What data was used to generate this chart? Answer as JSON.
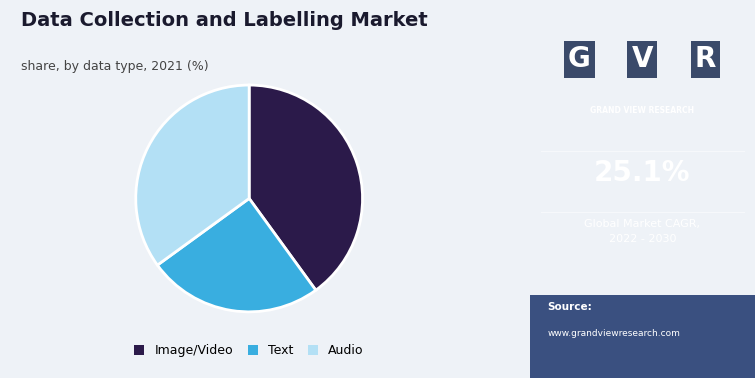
{
  "title": "Data Collection and Labelling Market",
  "subtitle": "share, by data type, 2021 (%)",
  "slices": [
    {
      "label": "Image/Video",
      "value": 40,
      "color": "#2b1a4a"
    },
    {
      "label": "Text",
      "value": 25,
      "color": "#39aee0"
    },
    {
      "label": "Audio",
      "value": 35,
      "color": "#b3e0f5"
    }
  ],
  "startangle": 90,
  "left_bg": "#eef2f7",
  "right_bg": "#2b1a4a",
  "cagr_value": "25.1%",
  "cagr_label": "Global Market CAGR,\n2022 - 2030",
  "source_label": "Source:",
  "source_url": "www.grandviewresearch.com",
  "title_color": "#1a1a2e",
  "subtitle_color": "#444444",
  "legend_fontsize": 9,
  "title_fontsize": 14,
  "subtitle_fontsize": 9,
  "top_bar_color": "#4fc3f7",
  "top_bar_height": 0.022,
  "gvr_logo": "GVR",
  "gvr_sub": "GRAND VIEW RESEARCH",
  "right_bottom_bg": "#3a5080"
}
